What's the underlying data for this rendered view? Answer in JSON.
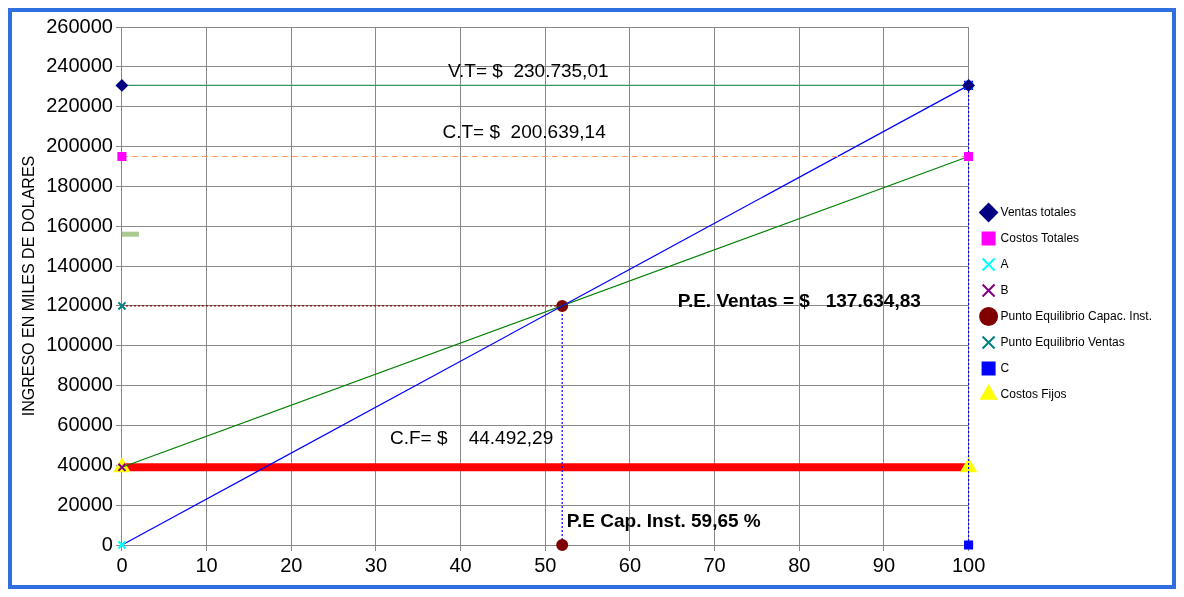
{
  "chart_data": {
    "type": "line",
    "ylabel": "INGRESO EN MILES DE DOLARES",
    "xlim": [
      0,
      100
    ],
    "xticks": [
      0,
      10,
      20,
      30,
      40,
      50,
      60,
      70,
      80,
      90,
      100
    ],
    "ylim": [
      0,
      260000
    ],
    "yticks": [
      0,
      20000,
      40000,
      60000,
      80000,
      100000,
      120000,
      140000,
      160000,
      180000,
      200000,
      220000,
      240000,
      260000
    ],
    "grid": true,
    "legend": "right",
    "series": [
      {
        "name": "Ventas totales",
        "color": "#339966",
        "colors": [
          "#000080",
          "#000080"
        ],
        "marker": "diamond",
        "line_style": "solid",
        "x": [
          0,
          100
        ],
        "values": [
          230700,
          230700
        ]
      },
      {
        "name": "Costos Totales",
        "color": "#ff9966",
        "colors": [
          "#ff00ff",
          "#ff00ff"
        ],
        "marker": "square",
        "line_style": "dashed",
        "x": [
          0,
          100
        ],
        "values": [
          195000,
          195000
        ]
      },
      {
        "name": "Costos Fijos",
        "color": "#ff0000",
        "colors": [
          "#ffff00",
          "#ffff00"
        ],
        "marker": "triangle",
        "line_style": "solid",
        "x": [
          0,
          100
        ],
        "values": [
          39000,
          39000
        ]
      },
      {
        "name": "A",
        "color": "#0000ff",
        "colors": [
          "#00ffff",
          "#00ffff"
        ],
        "marker": "cross",
        "line_style": "solid",
        "x": [
          0,
          100
        ],
        "values": [
          0,
          230700
        ]
      },
      {
        "name": "B",
        "color": "#008000",
        "colors": [
          "#800080",
          "#800080"
        ],
        "marker": "cross",
        "line_style": "solid",
        "x": [
          0,
          100
        ],
        "values": [
          39000,
          195000
        ]
      },
      {
        "name": "Punto Equilibrio Capac. Inst.",
        "color": "#0000ff",
        "colors": [
          "#800000",
          "#800000"
        ],
        "marker": "circle",
        "line_style": "dotted",
        "x": [
          52,
          52
        ],
        "values": [
          120000,
          0
        ]
      },
      {
        "name": "Punto Equilibrio Ventas",
        "color": "#800000",
        "colors": [
          "#008080",
          "#008080"
        ],
        "marker": "cross",
        "line_style": "dotted",
        "x": [
          0,
          52
        ],
        "values": [
          120000,
          120000
        ]
      },
      {
        "name": "C",
        "color": "#0000ff",
        "colors": [
          "#0000ff",
          "#0000ff"
        ],
        "marker": "square",
        "line_style": "dotted",
        "x": [
          100,
          100
        ],
        "values": [
          0,
          230700
        ]
      },
      {
        "type": "line",
        "color": "#a9c98e",
        "marker": "none",
        "x": [
          0,
          2
        ],
        "values": [
          156000,
          156000
        ]
      }
    ],
    "annotations": [
      "V.T= $  230.735,01",
      "C.T= $  200.639,14",
      "P.E. Ventas = $   137.634,83",
      "C.F= $    44.492,29",
      "P.E Cap. Inst. 59,65 %"
    ]
  }
}
